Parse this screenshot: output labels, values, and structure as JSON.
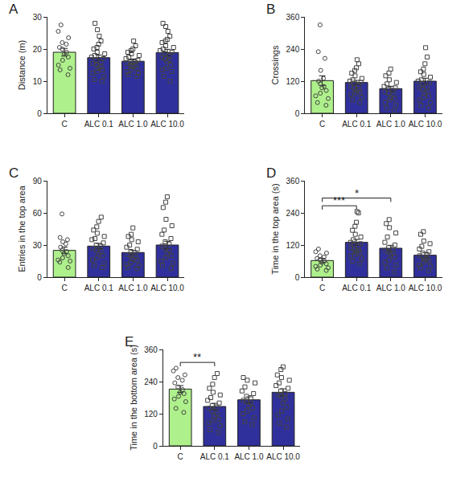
{
  "chart_data": [
    {
      "type": "bar",
      "title": "A",
      "y_label": "Distance (m)",
      "categories": [
        "C",
        "ALC 0.1",
        "ALC 1.0",
        "ALC 10.0"
      ],
      "values": [
        19.0,
        17.3,
        16.2,
        18.9
      ],
      "error": [
        1.2,
        0.8,
        0.7,
        1.0
      ],
      "colors": [
        "#aef08b",
        "#30309c",
        "#30309c",
        "#30309c"
      ],
      "ylim": [
        0,
        30
      ],
      "yticks": [
        0,
        10,
        20,
        30
      ],
      "grid": false,
      "points": [
        {
          "category": "C",
          "marker": "circle",
          "values": [
            27.5,
            25.5,
            23.5,
            22.0,
            21.5,
            20.5,
            20.0,
            19.0,
            18.5,
            17.5,
            16.5,
            15.0,
            14.0,
            13.5,
            12.0
          ]
        },
        {
          "category": "ALC 0.1",
          "marker": "square",
          "values": [
            28,
            26,
            24,
            22.5,
            21.5,
            20.5,
            20,
            19,
            18.5,
            18,
            17.5,
            17,
            16.5,
            16,
            15.5,
            15,
            14.5,
            14,
            13.5,
            13,
            12.5,
            11.5,
            10.5,
            10
          ]
        },
        {
          "category": "ALC 1.0",
          "marker": "square",
          "values": [
            22.5,
            21,
            20,
            19.5,
            19,
            18.5,
            18,
            17.5,
            17,
            16.5,
            16,
            16,
            15.5,
            15,
            15,
            14.5,
            14,
            13.5,
            13,
            12.5,
            12,
            11.5
          ]
        },
        {
          "category": "ALC 10.0",
          "marker": "square",
          "values": [
            28,
            27,
            25.5,
            24,
            23,
            22.5,
            22,
            21,
            20.5,
            20,
            19.5,
            19,
            18.5,
            18,
            17.5,
            17,
            16.5,
            16,
            15,
            14,
            13.5,
            13,
            11.5,
            10
          ]
        }
      ],
      "comparisons": []
    },
    {
      "type": "bar",
      "title": "B",
      "y_label": "Crossings",
      "categories": [
        "C",
        "ALC 0.1",
        "ALC 1.0",
        "ALC 10.0"
      ],
      "values": [
        122,
        115,
        92,
        120
      ],
      "error": [
        18,
        8,
        9,
        11
      ],
      "colors": [
        "#aef08b",
        "#30309c",
        "#30309c",
        "#30309c"
      ],
      "ylim": [
        0,
        360
      ],
      "yticks": [
        0,
        120,
        240,
        360
      ],
      "grid": false,
      "points": [
        {
          "category": "C",
          "marker": "circle",
          "values": [
            330,
            230,
            205,
            160,
            130,
            120,
            110,
            100,
            95,
            85,
            75,
            65,
            55,
            40,
            30
          ]
        },
        {
          "category": "ALC 0.1",
          "marker": "square",
          "values": [
            200,
            185,
            170,
            160,
            150,
            140,
            130,
            125,
            120,
            115,
            110,
            105,
            100,
            95,
            90,
            85,
            80,
            75,
            70,
            60,
            50,
            40
          ]
        },
        {
          "category": "ALC 1.0",
          "marker": "square",
          "values": [
            165,
            150,
            140,
            125,
            115,
            110,
            100,
            95,
            90,
            85,
            80,
            75,
            70,
            60,
            55,
            50,
            40,
            30,
            20,
            10
          ]
        },
        {
          "category": "ALC 10.0",
          "marker": "square",
          "values": [
            245,
            210,
            185,
            165,
            155,
            145,
            135,
            125,
            120,
            115,
            110,
            100,
            95,
            90,
            80,
            75,
            65,
            60,
            50,
            40,
            30,
            20
          ]
        }
      ],
      "comparisons": []
    },
    {
      "type": "bar",
      "title": "C",
      "y_label": "Entries in the top area",
      "categories": [
        "C",
        "ALC 0.1",
        "ALC 1.0",
        "ALC 10.0"
      ],
      "values": [
        25,
        29,
        23,
        30
      ],
      "error": [
        3,
        2.5,
        2,
        3.5
      ],
      "colors": [
        "#aef08b",
        "#30309c",
        "#30309c",
        "#30309c"
      ],
      "ylim": [
        0,
        90
      ],
      "yticks": [
        0,
        30,
        60,
        90
      ],
      "grid": false,
      "points": [
        {
          "category": "C",
          "marker": "circle",
          "values": [
            59,
            37,
            35,
            33,
            31,
            28,
            25,
            24,
            22,
            20,
            18,
            16,
            15,
            14,
            9
          ]
        },
        {
          "category": "ALC 0.1",
          "marker": "square",
          "values": [
            56,
            52,
            47,
            44,
            41,
            38,
            36,
            35,
            32,
            30,
            29,
            27,
            25,
            24,
            22,
            20,
            18,
            16,
            13,
            11,
            9
          ]
        },
        {
          "category": "ALC 1.0",
          "marker": "square",
          "values": [
            46,
            40,
            38,
            35,
            33,
            30,
            28,
            26,
            24,
            23,
            21,
            20,
            19,
            17,
            16,
            14,
            12,
            11,
            9,
            8
          ]
        },
        {
          "category": "ALC 10.0",
          "marker": "square",
          "values": [
            75,
            70,
            65,
            54,
            48,
            44,
            40,
            36,
            33,
            31,
            29,
            27,
            25,
            22,
            20,
            18,
            15,
            13,
            11,
            8
          ]
        }
      ],
      "comparisons": []
    },
    {
      "type": "bar",
      "title": "D",
      "y_label": "Time in the top area (s)",
      "categories": [
        "C",
        "ALC 0.1",
        "ALC 1.0",
        "ALC 10.0"
      ],
      "values": [
        62,
        130,
        108,
        82
      ],
      "error": [
        8,
        11,
        11,
        9
      ],
      "colors": [
        "#aef08b",
        "#30309c",
        "#30309c",
        "#30309c"
      ],
      "ylim": [
        0,
        360
      ],
      "yticks": [
        0,
        120,
        240,
        360
      ],
      "grid": false,
      "points": [
        {
          "category": "C",
          "marker": "circle",
          "values": [
            105,
            95,
            90,
            80,
            75,
            70,
            65,
            60,
            55,
            50,
            45,
            40,
            35,
            30,
            25
          ]
        },
        {
          "category": "ALC 0.1",
          "marker": "square",
          "values": [
            245,
            240,
            205,
            190,
            175,
            160,
            150,
            140,
            130,
            125,
            120,
            115,
            110,
            105,
            100,
            95,
            90,
            85,
            80,
            70,
            60,
            50
          ]
        },
        {
          "category": "ALC 1.0",
          "marker": "square",
          "values": [
            215,
            200,
            185,
            165,
            150,
            130,
            120,
            110,
            105,
            100,
            95,
            90,
            85,
            75,
            65,
            55,
            45,
            35,
            20
          ]
        },
        {
          "category": "ALC 10.0",
          "marker": "square",
          "values": [
            170,
            160,
            135,
            125,
            115,
            105,
            95,
            90,
            85,
            80,
            75,
            70,
            65,
            60,
            55,
            45,
            40,
            35,
            25
          ]
        }
      ],
      "comparisons": [
        {
          "from": "C",
          "to": "ALC 0.1",
          "label": "***"
        },
        {
          "from": "C",
          "to": "ALC 1.0",
          "label": "*"
        }
      ]
    },
    {
      "type": "bar",
      "title": "E",
      "y_label": "Time in the bottom area (s)",
      "categories": [
        "C",
        "ALC 0.1",
        "ALC 1.0",
        "ALC 10.0"
      ],
      "values": [
        212,
        147,
        172,
        200
      ],
      "error": [
        13,
        12,
        11,
        13
      ],
      "colors": [
        "#aef08b",
        "#30309c",
        "#30309c",
        "#30309c"
      ],
      "ylim": [
        0,
        360
      ],
      "yticks": [
        0,
        120,
        240,
        360
      ],
      "grid": false,
      "points": [
        {
          "category": "C",
          "marker": "circle",
          "values": [
            290,
            280,
            265,
            255,
            245,
            235,
            220,
            210,
            200,
            195,
            185,
            175,
            165,
            140,
            125
          ]
        },
        {
          "category": "ALC 0.1",
          "marker": "square",
          "values": [
            270,
            255,
            230,
            215,
            200,
            190,
            180,
            170,
            160,
            150,
            145,
            140,
            130,
            120,
            110,
            100,
            95,
            85,
            75,
            60,
            50
          ]
        },
        {
          "category": "ALC 1.0",
          "marker": "square",
          "values": [
            255,
            245,
            235,
            220,
            205,
            195,
            185,
            180,
            170,
            165,
            160,
            150,
            140,
            130,
            120,
            105,
            90,
            80
          ]
        },
        {
          "category": "ALC 10.0",
          "marker": "square",
          "values": [
            295,
            285,
            265,
            255,
            245,
            235,
            225,
            215,
            205,
            195,
            190,
            185,
            175,
            160,
            145,
            130,
            115,
            100,
            85,
            70
          ]
        }
      ],
      "comparisons": [
        {
          "from": "C",
          "to": "ALC 0.1",
          "label": "**"
        }
      ]
    }
  ]
}
